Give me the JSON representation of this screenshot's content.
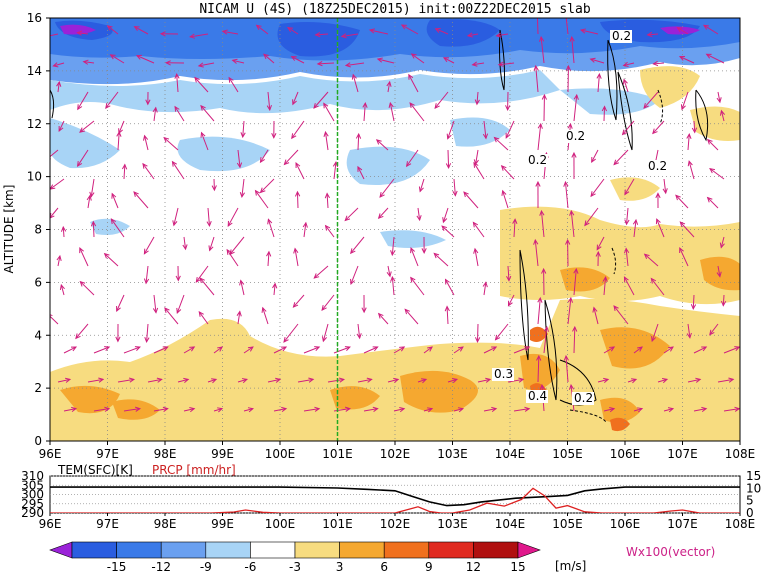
{
  "chart_data": {
    "type": "heatmap",
    "title": "NICAM U (4S) (18Z25DEC2015) init:00Z22DEC2015 slab",
    "ylabel": "ALTITUDE [km]",
    "x_ticks": [
      "96E",
      "97E",
      "98E",
      "99E",
      "100E",
      "101E",
      "102E",
      "103E",
      "104E",
      "105E",
      "106E",
      "107E",
      "108E"
    ],
    "x_range": [
      96,
      108
    ],
    "y_ticks": [
      "0",
      "2",
      "4",
      "6",
      "8",
      "10",
      "12",
      "14",
      "16"
    ],
    "y_range": [
      0,
      16
    ],
    "grid": true,
    "green_marker_lon": 101,
    "color_scale": {
      "unit": "[m/s]",
      "ticks": [
        "-15",
        "-12",
        "-9",
        "-6",
        "-3",
        "3",
        "6",
        "9",
        "12",
        "15"
      ],
      "colors": [
        "#9a22d8",
        "#2a5de0",
        "#3a7ae8",
        "#6aa0f0",
        "#a8d4f6",
        "#ffffff",
        "#f7dc80",
        "#f5a830",
        "#f0701e",
        "#e02a20",
        "#b01010",
        "#e0188c"
      ]
    },
    "vector_label": "Wx100(vector)",
    "contour_labels": [
      "0.2",
      "0.2",
      "0.2",
      "0.2",
      "0.3",
      "0.4",
      "0.2"
    ],
    "lower_panel": {
      "label_tem": "TEM(SFC)[K]",
      "label_prcp": "PRCP [mm/hr]",
      "left_ticks": [
        "310",
        "305",
        "300",
        "295",
        "290"
      ],
      "left_range": [
        290,
        310
      ],
      "right_ticks": [
        "15",
        "10",
        "5",
        "0"
      ],
      "right_range": [
        0,
        15
      ],
      "x_ticks": [
        "96E",
        "97E",
        "98E",
        "99E",
        "100E",
        "101E",
        "102E",
        "103E",
        "104E",
        "105E",
        "106E",
        "107E",
        "108E"
      ],
      "series": [
        {
          "name": "TEM(SFC)[K]",
          "color": "#000000",
          "x": [
            96,
            97,
            98,
            99,
            100,
            101,
            101.5,
            102,
            102.3,
            102.6,
            102.9,
            103.2,
            103.5,
            103.8,
            104.1,
            104.4,
            104.7,
            105,
            105.3,
            105.6,
            106,
            107,
            108
          ],
          "y": [
            304,
            304,
            304,
            304,
            304,
            303.5,
            302.8,
            302,
            299,
            296,
            294,
            294.5,
            296,
            297,
            298,
            298.5,
            299,
            299.5,
            302,
            303,
            304,
            304,
            304
          ]
        },
        {
          "name": "PRCP [mm/hr]",
          "color": "#dd2222",
          "x": [
            96,
            98.8,
            99.2,
            99.4,
            99.7,
            100,
            101,
            102,
            102.4,
            102.6,
            102.8,
            103,
            103.3,
            103.6,
            103.9,
            104.2,
            104.4,
            104.6,
            104.8,
            105,
            105.3,
            105.6,
            106,
            106.5,
            106.8,
            107,
            107.3,
            108
          ],
          "y": [
            0,
            0,
            0.4,
            1.2,
            0.3,
            0,
            0,
            0,
            2.5,
            0.6,
            0,
            0,
            1.2,
            4,
            2.8,
            5.5,
            10,
            7,
            2,
            3,
            0.5,
            0,
            0,
            0,
            0.8,
            1.2,
            0,
            0
          ]
        }
      ]
    }
  }
}
